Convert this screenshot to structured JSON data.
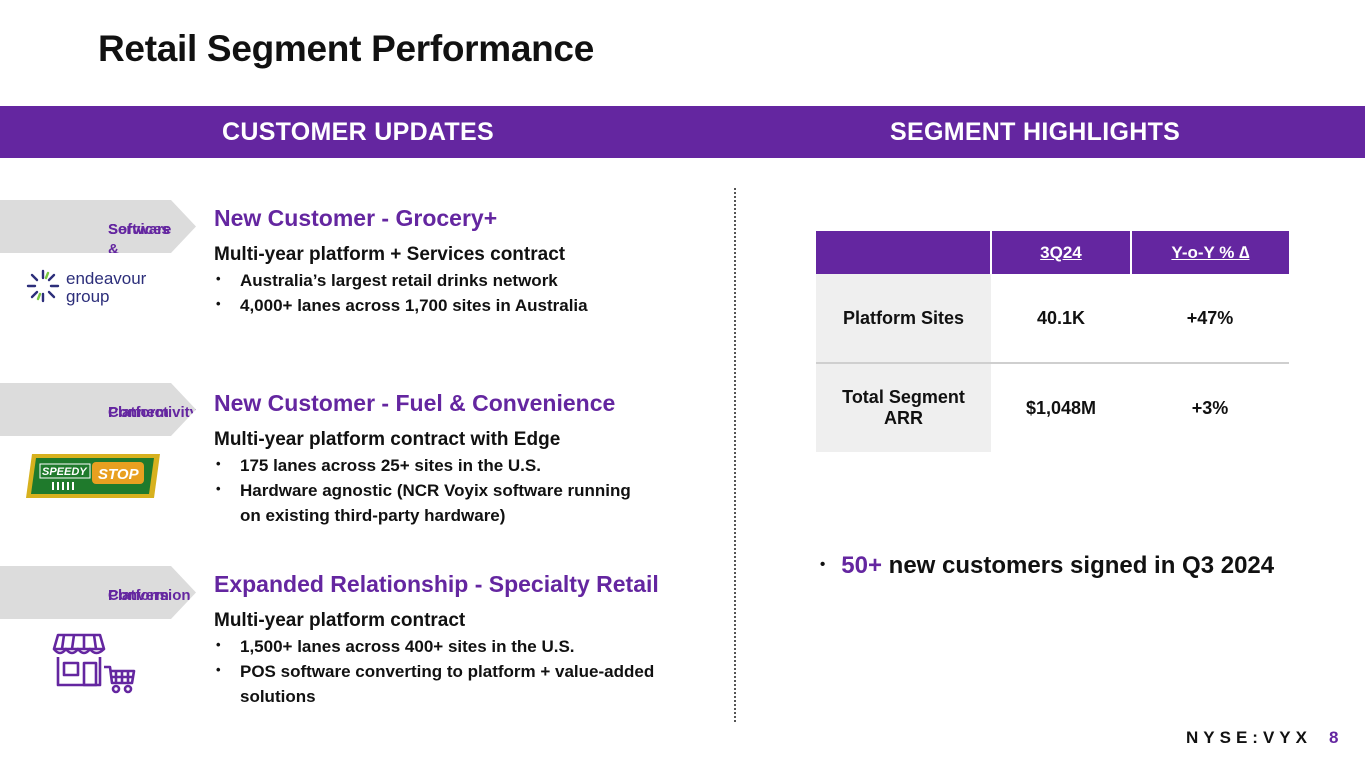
{
  "title": "Retail Segment Performance",
  "banner": {
    "left": "CUSTOMER UPDATES",
    "right": "SEGMENT HIGHLIGHTS"
  },
  "customers": [
    {
      "tag_line1": "Software &",
      "tag_line2": "Services",
      "logo": {
        "name": "endeavour-group-logo",
        "text1": "endeavour",
        "text2": "group"
      },
      "heading": "New Customer - Grocery+",
      "subheading": "Multi-year platform + Services contract",
      "bullets": [
        "Australia’s largest retail drinks network",
        "4,000+ lanes across 1,700 sites in Australia"
      ]
    },
    {
      "tag_line1": "Platform",
      "tag_line2": "Connectivity",
      "logo": {
        "name": "speedy-stop-logo",
        "text1": "SPEEDY",
        "text2": "STOP"
      },
      "heading": "New Customer - Fuel & Convenience",
      "subheading": "Multi-year platform contract with Edge",
      "bullets": [
        "175 lanes across 25+ sites in the U.S.",
        "Hardware agnostic (NCR Voyix software running on existing third-party hardware)"
      ]
    },
    {
      "tag_line1": "Platform",
      "tag_line2": "Conversion",
      "logo": {
        "name": "store-cart-icon"
      },
      "heading": "Expanded Relationship  - Specialty Retail",
      "subheading": "Multi-year platform contract",
      "bullets": [
        "1,500+ lanes across 400+ sites in the U.S.",
        "POS software converting to platform + value-added solutions"
      ]
    }
  ],
  "table": {
    "headers": [
      "",
      "3Q24",
      "Y-o-Y % ∆"
    ],
    "rows": [
      {
        "label": "Platform Sites",
        "value": "40.1K",
        "change": "+47%"
      },
      {
        "label": "Total Segment ARR",
        "value": "$1,048M",
        "change": "+3%"
      }
    ]
  },
  "highlight": {
    "accent": "50+",
    "text": " new customers signed in Q3 2024"
  },
  "footer": {
    "ticker": "NYSE:VYX",
    "page": "8"
  },
  "colors": {
    "brand_purple": "#6426a0",
    "tag_gray": "#dcdcdc",
    "table_label_bg": "#efefef"
  }
}
